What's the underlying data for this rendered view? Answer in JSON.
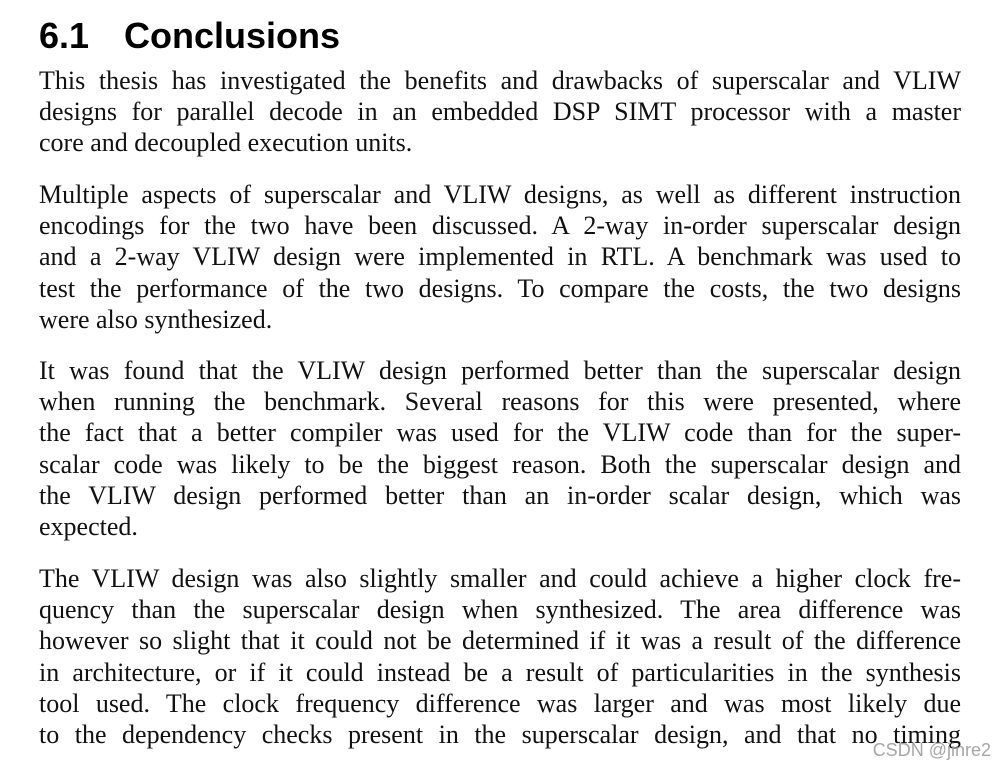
{
  "heading": {
    "number": "6.1",
    "title": "Conclusions"
  },
  "paragraphs": [
    {
      "lines": [
        "This thesis has investigated the benefits and drawbacks of superscalar and VLIW",
        "designs for parallel decode in an embedded DSP SIMT processor with a master",
        "core and decoupled execution units."
      ]
    },
    {
      "lines": [
        "Multiple aspects of superscalar and VLIW designs, as well as different instruction",
        "encodings for the two have been discussed. A 2-way in-order superscalar design",
        "and a 2-way VLIW design were implemented in RTL. A benchmark was used to",
        "test the performance of the two designs. To compare the costs, the two designs",
        "were also synthesized."
      ]
    },
    {
      "lines": [
        "It was found that the VLIW design performed better than the superscalar design",
        "when running the benchmark. Several reasons for this were presented, where",
        "the fact that a better compiler was used for the VLIW code than for the super-",
        "scalar code was likely to be the biggest reason. Both the superscalar design and",
        "the VLIW design performed better than an in-order scalar design, which was",
        "expected."
      ]
    },
    {
      "lines": [
        "The VLIW design was also slightly smaller and could achieve a higher clock fre-",
        "quency than the superscalar design when synthesized. The area difference was",
        "however so slight that it could not be determined if it was a result of the difference",
        "in architecture, or if it could instead be a result of particularities in the synthesis",
        "tool used. The clock frequency difference was larger and was most likely due",
        "to the dependency checks present in the superscalar design, and that no timing"
      ]
    }
  ],
  "watermark": "CSDN @jinre2"
}
